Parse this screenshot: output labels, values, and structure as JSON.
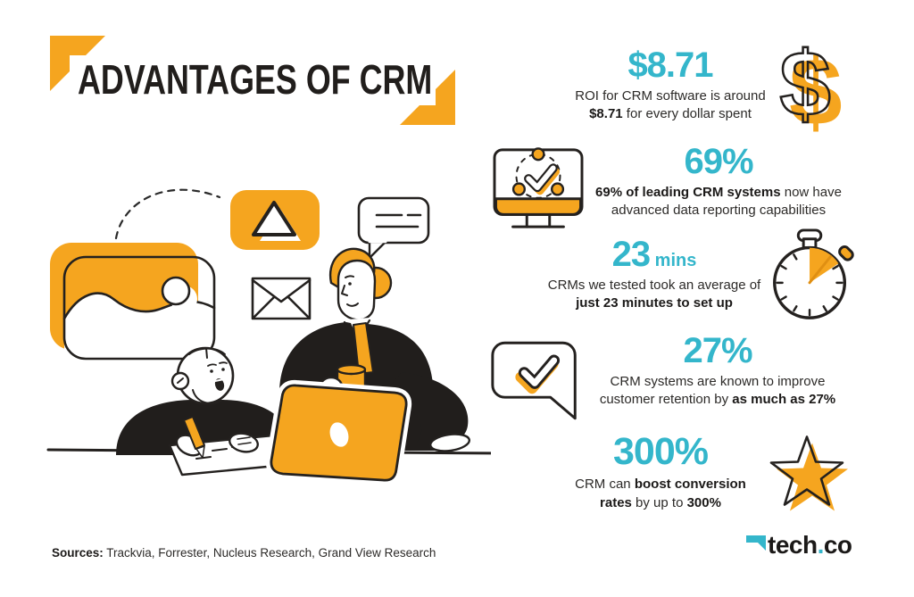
{
  "title": {
    "text": "ADVANTAGES OF CRM"
  },
  "stats": [
    {
      "id": "roi",
      "value": "$8.71",
      "value_suffix": "",
      "icon": "dollar-icon",
      "desc": [
        {
          "text": "ROI for CRM software is around ",
          "bold": false
        },
        {
          "text": "$8.71",
          "bold": true
        },
        {
          "text": " for every dollar spent",
          "bold": false
        }
      ]
    },
    {
      "id": "reporting",
      "value": "69%",
      "value_suffix": "",
      "icon": "monitor-check-icon",
      "desc": [
        {
          "text": "69% of leading CRM systems",
          "bold": true
        },
        {
          "text": " now have advanced data reporting capabilities",
          "bold": false
        }
      ]
    },
    {
      "id": "setup-time",
      "value": "23",
      "value_suffix": "mins",
      "icon": "stopwatch-icon",
      "desc": [
        {
          "text": "CRMs we tested took an average of ",
          "bold": false
        },
        {
          "text": "just 23 minutes to set up",
          "bold": true
        }
      ]
    },
    {
      "id": "retention",
      "value": "27%",
      "value_suffix": "",
      "icon": "speech-check-icon",
      "desc": [
        {
          "text": "CRM systems are known to improve customer retention by ",
          "bold": false
        },
        {
          "text": "as much as 27%",
          "bold": true
        }
      ]
    },
    {
      "id": "conversion",
      "value": "300%",
      "value_suffix": "",
      "icon": "star-icon",
      "desc": [
        {
          "text": "CRM can ",
          "bold": false
        },
        {
          "text": "boost conversion rates",
          "bold": true
        },
        {
          "text": " by up to ",
          "bold": false
        },
        {
          "text": "300%",
          "bold": true
        }
      ]
    }
  ],
  "footer": {
    "sources_label": "Sources:",
    "sources_text": "Trackvia, Forrester, Nucleus Research, Grand View Research",
    "logo": {
      "prefix": "tech",
      "dot": ".",
      "suffix": "co"
    }
  },
  "colors": {
    "orange": "#F5A51F",
    "teal": "#34B6CB",
    "ink": "#211E1C"
  },
  "illustration_alt": "Two people at a desk — one writing notes, one standing with a cup behind an orange laptop — surrounded by photo, alert-triangle, chat-bubble and email icons"
}
